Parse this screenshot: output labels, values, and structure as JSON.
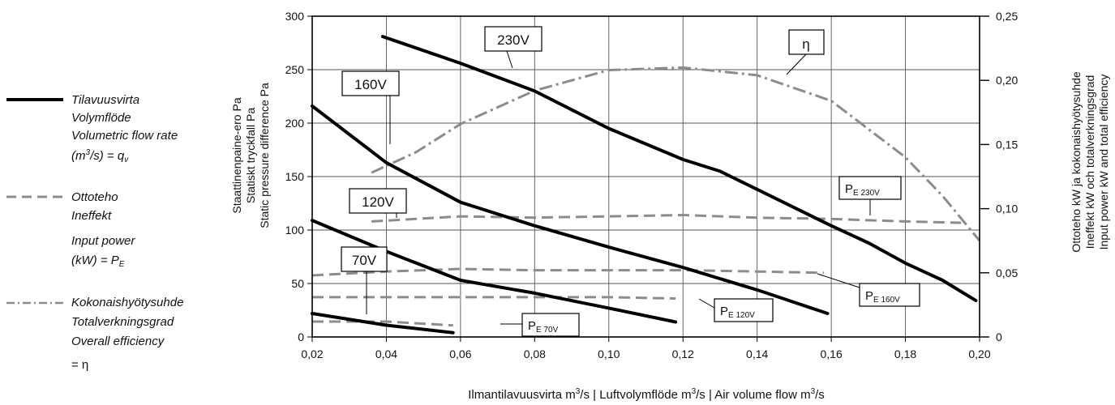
{
  "legend": {
    "flow": {
      "lines": [
        "Tilavuusvirta",
        "Volymflöde",
        "Volumetric flow rate"
      ],
      "formula": {
        "a": "(m",
        "sup": "3",
        "b": "/s) = q",
        "sub": "v"
      }
    },
    "power": {
      "lines": [
        "Ottoteho",
        "Ineffekt",
        "Input power"
      ],
      "formula": {
        "a": "(kW) = P",
        "sub": "E"
      }
    },
    "efficiency": {
      "lines": [
        "Kokonaishyötysuhde",
        "Totalverkningsgrad",
        "Overall efficiency",
        "= η"
      ]
    }
  },
  "y_left_label": [
    "Staattinenpaine-ero Pa",
    "Statiskt tryckfall Pa",
    "Static pressure difference Pa"
  ],
  "y_right_label": [
    "Ottoteho kW ja kokonaishyötysuhde",
    "Ineffekt kW och totalverkningsgrad",
    "Input power kW and total efficiency"
  ],
  "x_label": {
    "p1": "Ilmantilavuusvirta m",
    "p2": "/s  | Luftvolymflöde m",
    "p3": "/s | Air volume flow m",
    "p4": "/s",
    "sup": "3"
  },
  "colors": {
    "pressure": "#000000",
    "dashed": "#8c8c8c",
    "grid": "#555555"
  },
  "chart_data": {
    "type": "line",
    "x_ticks": [
      "0,02",
      "0,04",
      "0,06",
      "0,08",
      "0,10",
      "0,12",
      "0,14",
      "0,16",
      "0,18",
      "0,20"
    ],
    "y_left_ticks": [
      "0",
      "50",
      "100",
      "150",
      "200",
      "250",
      "300"
    ],
    "y_right_ticks": [
      "0",
      "0,05",
      "0,10",
      "0,15",
      "0,20",
      "0,25"
    ],
    "xlim": [
      0.02,
      0.2
    ],
    "ylim_left": [
      0,
      300
    ],
    "ylim_right": [
      0,
      0.25
    ],
    "grid": true,
    "pressure_series": [
      {
        "name": "230V",
        "x": [
          0.039,
          0.06,
          0.08,
          0.1,
          0.12,
          0.13,
          0.14,
          0.16,
          0.17,
          0.18,
          0.19,
          0.199
        ],
        "y": [
          281,
          256,
          230,
          195,
          166,
          155,
          138,
          104,
          88,
          69,
          53,
          34
        ]
      },
      {
        "name": "160V",
        "x": [
          0.02,
          0.04,
          0.06,
          0.08,
          0.1,
          0.12,
          0.14,
          0.159
        ],
        "y": [
          216,
          163,
          126,
          104,
          84,
          65,
          44,
          22
        ]
      },
      {
        "name": "120V",
        "x": [
          0.02,
          0.04,
          0.06,
          0.08,
          0.1,
          0.118
        ],
        "y": [
          109,
          80,
          53,
          41,
          27,
          14
        ]
      },
      {
        "name": "70V",
        "x": [
          0.02,
          0.04,
          0.058
        ],
        "y": [
          22,
          11,
          4
        ]
      }
    ],
    "power_series": [
      {
        "name": "P_E 230V",
        "x": [
          0.036,
          0.06,
          0.08,
          0.1,
          0.12,
          0.14,
          0.16,
          0.18,
          0.195
        ],
        "y": [
          0.09,
          0.094,
          0.093,
          0.094,
          0.095,
          0.093,
          0.092,
          0.09,
          0.089
        ]
      },
      {
        "name": "P_E 160V",
        "x": [
          0.02,
          0.04,
          0.06,
          0.08,
          0.1,
          0.12,
          0.14,
          0.158
        ],
        "y": [
          0.048,
          0.051,
          0.053,
          0.052,
          0.052,
          0.052,
          0.051,
          0.05
        ]
      },
      {
        "name": "P_E 120V",
        "x": [
          0.02,
          0.04,
          0.06,
          0.08,
          0.1,
          0.118
        ],
        "y": [
          0.031,
          0.031,
          0.031,
          0.031,
          0.031,
          0.03
        ]
      },
      {
        "name": "P_E 70V",
        "x": [
          0.02,
          0.04,
          0.058
        ],
        "y": [
          0.012,
          0.012,
          0.009
        ]
      }
    ],
    "efficiency_series": [
      {
        "name": "η",
        "x": [
          0.036,
          0.048,
          0.06,
          0.08,
          0.1,
          0.12,
          0.14,
          0.16,
          0.18,
          0.19,
          0.2
        ],
        "y": [
          0.128,
          0.144,
          0.166,
          0.192,
          0.208,
          0.21,
          0.204,
          0.184,
          0.14,
          0.11,
          0.075
        ]
      }
    ],
    "labels": {
      "l230": "230V",
      "l160": "160V",
      "l120": "120V",
      "l70": "70V",
      "eta": "η",
      "pe_prefix": "P",
      "pe_sub_prefix": "E",
      "pe230": "230V",
      "pe160": "160V",
      "pe120": "120V",
      "pe70": "70V"
    }
  }
}
